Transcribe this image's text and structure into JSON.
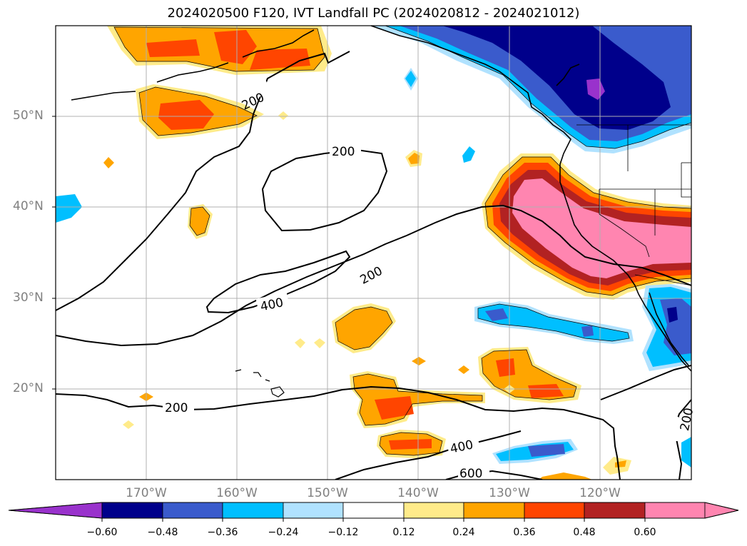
{
  "title": "2024020500 F120, IVT Landfall PC (2024020812 - 2024021012)",
  "lat_labels": [
    "50°N",
    "40°N",
    "30°N",
    "20°N"
  ],
  "lon_labels": [
    "170°W",
    "160°W",
    "150°W",
    "140°W",
    "130°W",
    "120°W"
  ],
  "contour_labels": [
    "200",
    "200",
    "200",
    "200",
    "400",
    "400",
    "600",
    "200"
  ],
  "colorbar": {
    "ticks": [
      "−0.60",
      "−0.48",
      "−0.36",
      "−0.24",
      "−0.12",
      "0.12",
      "0.24",
      "0.36",
      "0.48",
      "0.60"
    ],
    "colors": [
      "#9932cc",
      "#00008b",
      "#3a5bcc",
      "#00bfff",
      "#b0e2ff",
      "#ffffff",
      "#ffeb8a",
      "#ffa500",
      "#ff4500",
      "#b22222",
      "#ff85b0"
    ]
  },
  "legend_colors": {
    "land_outline": "#000000",
    "grid": "#b0b0b0"
  }
}
